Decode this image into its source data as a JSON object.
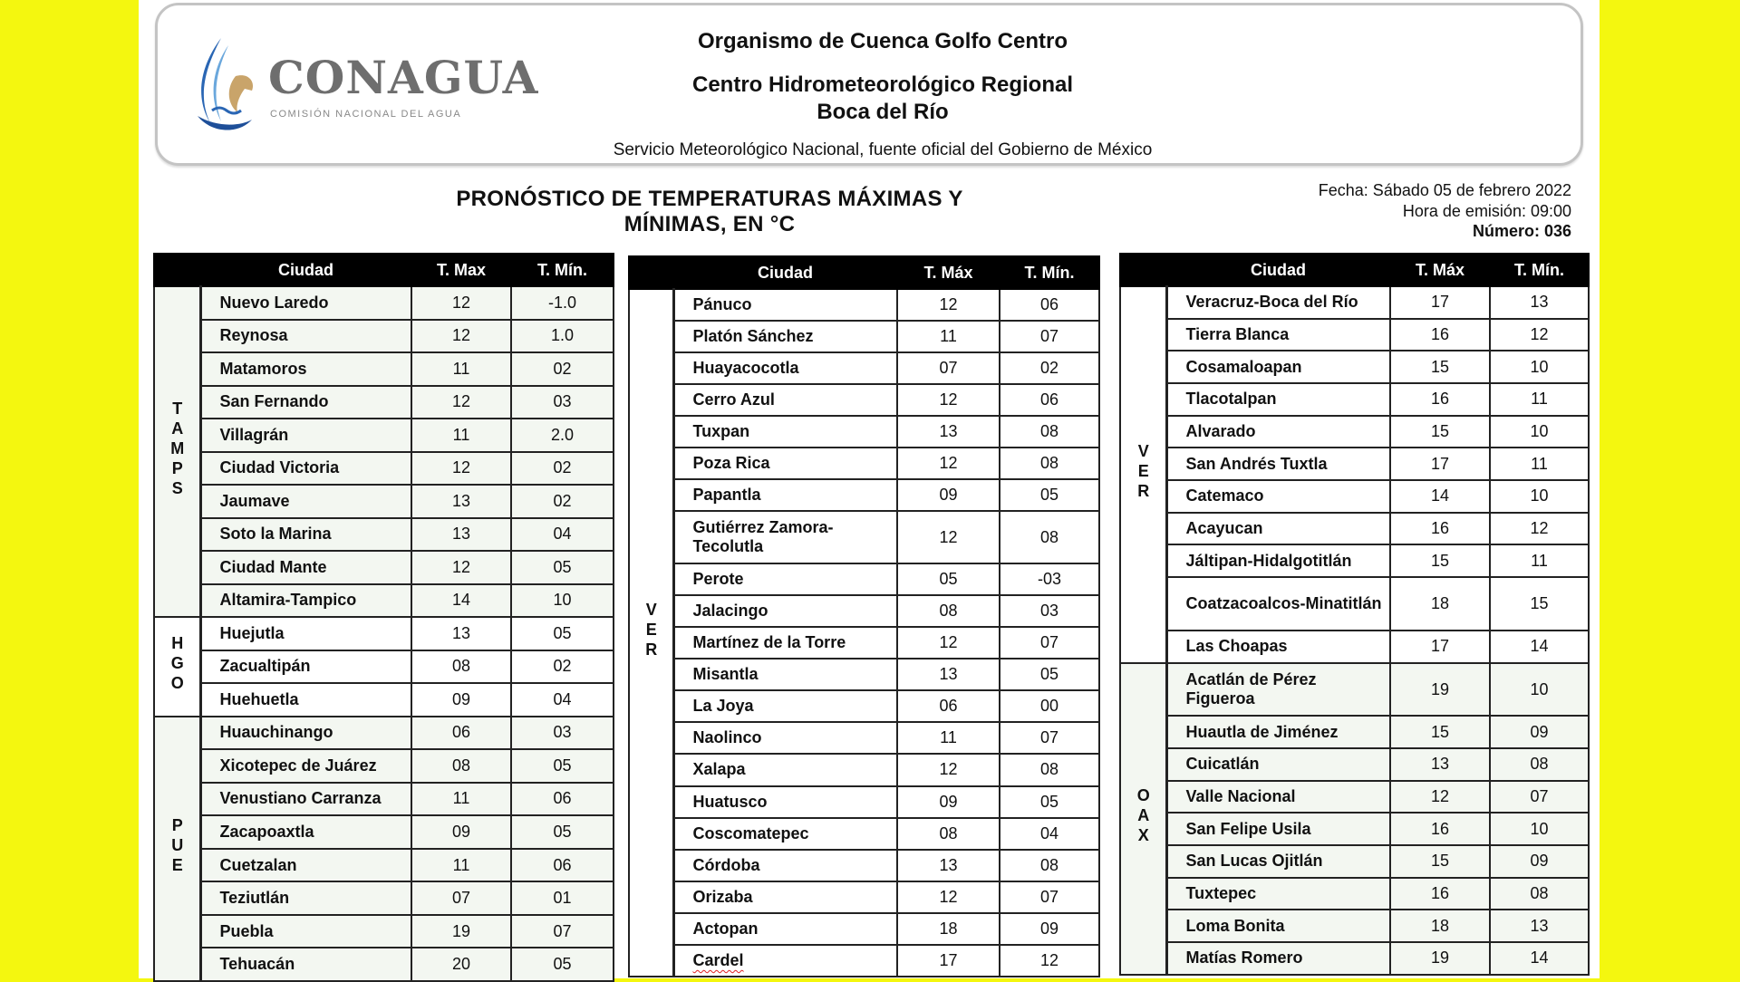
{
  "colors": {
    "background": "#f4f70f",
    "header_bg": "#000000",
    "shaded_group_bg": "#f3f7f1"
  },
  "logo": {
    "name": "CONAGUA",
    "subtitle": "COMISIÓN NACIONAL DEL AGUA"
  },
  "header": {
    "line1": "Organismo de Cuenca Golfo Centro",
    "line2": "Centro Hidrometeorológico Regional",
    "line3": "Boca del Río",
    "service": "Servicio Meteorológico Nacional, fuente oficial del Gobierno de México"
  },
  "title": "PRONÓSTICO DE TEMPERATURAS MÁXIMAS Y MÍNIMAS, EN °C",
  "meta": {
    "fecha": "Fecha: Sábado 05 de febrero 2022",
    "hora": "Hora de emisión: 09:00",
    "numero": "Número: 036"
  },
  "tables": [
    {
      "headers": {
        "city": "Ciudad",
        "max": "T. Max",
        "min": "T. Mín."
      },
      "groups": [
        {
          "state": "TAMPS",
          "shaded": true,
          "rows": [
            {
              "city": "Nuevo Laredo",
              "max": "12",
              "min": "-1.0"
            },
            {
              "city": "Reynosa",
              "max": "12",
              "min": "1.0"
            },
            {
              "city": "Matamoros",
              "max": "11",
              "min": "02"
            },
            {
              "city": "San Fernando",
              "max": "12",
              "min": "03"
            },
            {
              "city": "Villagrán",
              "max": "11",
              "min": "2.0"
            },
            {
              "city": "Ciudad Victoria",
              "max": "12",
              "min": "02"
            },
            {
              "city": "Jaumave",
              "max": "13",
              "min": "02"
            },
            {
              "city": "Soto la Marina",
              "max": "13",
              "min": "04"
            },
            {
              "city": "Ciudad Mante",
              "max": "12",
              "min": "05"
            },
            {
              "city": "Altamira-Tampico",
              "max": "14",
              "min": "10"
            }
          ]
        },
        {
          "state": "HGO",
          "shaded": false,
          "rows": [
            {
              "city": "Huejutla",
              "max": "13",
              "min": "05"
            },
            {
              "city": "Zacualtipán",
              "max": "08",
              "min": "02"
            },
            {
              "city": "Huehuetla",
              "max": "09",
              "min": "04"
            }
          ]
        },
        {
          "state": "PUE",
          "shaded": true,
          "rows": [
            {
              "city": "Huauchinango",
              "max": "06",
              "min": "03"
            },
            {
              "city": "Xicotepec de Juárez",
              "max": "08",
              "min": "05"
            },
            {
              "city": "Venustiano Carranza",
              "max": "11",
              "min": "06"
            },
            {
              "city": "Zacapoaxtla",
              "max": "09",
              "min": "05"
            },
            {
              "city": "Cuetzalan",
              "max": "11",
              "min": "06"
            },
            {
              "city": "Teziutlán",
              "max": "07",
              "min": "01"
            },
            {
              "city": "Puebla",
              "max": "19",
              "min": "07"
            },
            {
              "city": "Tehuacán",
              "max": "20",
              "min": "05"
            }
          ]
        }
      ]
    },
    {
      "headers": {
        "city": "Ciudad",
        "max": "T. Máx",
        "min": "T. Mín."
      },
      "groups": [
        {
          "state": "VER",
          "shaded": false,
          "rows": [
            {
              "city": "Pánuco",
              "max": "12",
              "min": "06"
            },
            {
              "city": "Platón Sánchez",
              "max": "11",
              "min": "07"
            },
            {
              "city": "Huayacocotla",
              "max": "07",
              "min": "02"
            },
            {
              "city": "Cerro Azul",
              "max": "12",
              "min": "06"
            },
            {
              "city": "Tuxpan",
              "max": "13",
              "min": "08"
            },
            {
              "city": "Poza Rica",
              "max": "12",
              "min": "08"
            },
            {
              "city": "Papantla",
              "max": "09",
              "min": "05"
            },
            {
              "city": "Gutiérrez Zamora-Tecolutla",
              "max": "12",
              "min": "08",
              "tall": true
            },
            {
              "city": "Perote",
              "max": "05",
              "min": "-03"
            },
            {
              "city": "Jalacingo",
              "max": "08",
              "min": "03"
            },
            {
              "city": "Martínez de la Torre",
              "max": "12",
              "min": "07"
            },
            {
              "city": "Misantla",
              "max": "13",
              "min": "05"
            },
            {
              "city": "La Joya",
              "max": "06",
              "min": "00"
            },
            {
              "city": "Naolinco",
              "max": "11",
              "min": "07"
            },
            {
              "city": "Xalapa",
              "max": "12",
              "min": "08"
            },
            {
              "city": "Huatusco",
              "max": "09",
              "min": "05"
            },
            {
              "city": "Coscomatepec",
              "max": "08",
              "min": "04"
            },
            {
              "city": "Córdoba",
              "max": "13",
              "min": "08"
            },
            {
              "city": "Orizaba",
              "max": "12",
              "min": "07"
            },
            {
              "city": "Actopan",
              "max": "18",
              "min": "09"
            },
            {
              "city": "Cardel",
              "max": "17",
              "min": "12",
              "spellcheck_flag": true
            }
          ]
        }
      ]
    },
    {
      "headers": {
        "city": "Ciudad",
        "max": "T. Máx",
        "min": "T. Mín."
      },
      "groups": [
        {
          "state": "VER",
          "shaded": false,
          "rows": [
            {
              "city": "Veracruz-Boca del Río",
              "max": "17",
              "min": "13"
            },
            {
              "city": "Tierra Blanca",
              "max": "16",
              "min": "12"
            },
            {
              "city": "Cosamaloapan",
              "max": "15",
              "min": "10"
            },
            {
              "city": "Tlacotalpan",
              "max": "16",
              "min": "11"
            },
            {
              "city": "Alvarado",
              "max": "15",
              "min": "10"
            },
            {
              "city": "San Andrés Tuxtla",
              "max": "17",
              "min": "11"
            },
            {
              "city": "Catemaco",
              "max": "14",
              "min": "10"
            },
            {
              "city": "Acayucan",
              "max": "16",
              "min": "12"
            },
            {
              "city": "Jáltipan-Hidalgotitlán",
              "max": "15",
              "min": "11"
            },
            {
              "city": "Coatzacoalcos-Minatitlán",
              "max": "18",
              "min": "15",
              "tall": true
            },
            {
              "city": "Las Choapas",
              "max": "17",
              "min": "14"
            }
          ]
        },
        {
          "state": "OAX",
          "shaded": true,
          "rows": [
            {
              "city": "Acatlán de Pérez Figueroa",
              "max": "19",
              "min": "10",
              "tall": true
            },
            {
              "city": "Huautla de Jiménez",
              "max": "15",
              "min": "09"
            },
            {
              "city": "Cuicatlán",
              "max": "13",
              "min": "08"
            },
            {
              "city": "Valle Nacional",
              "max": "12",
              "min": "07"
            },
            {
              "city": "San Felipe Usila",
              "max": "16",
              "min": "10"
            },
            {
              "city": "San Lucas Ojitlán",
              "max": "15",
              "min": "09"
            },
            {
              "city": "Tuxtepec",
              "max": "16",
              "min": "08"
            },
            {
              "city": "Loma Bonita",
              "max": "18",
              "min": "13"
            },
            {
              "city": "Matías Romero",
              "max": "19",
              "min": "14"
            }
          ]
        }
      ]
    }
  ]
}
